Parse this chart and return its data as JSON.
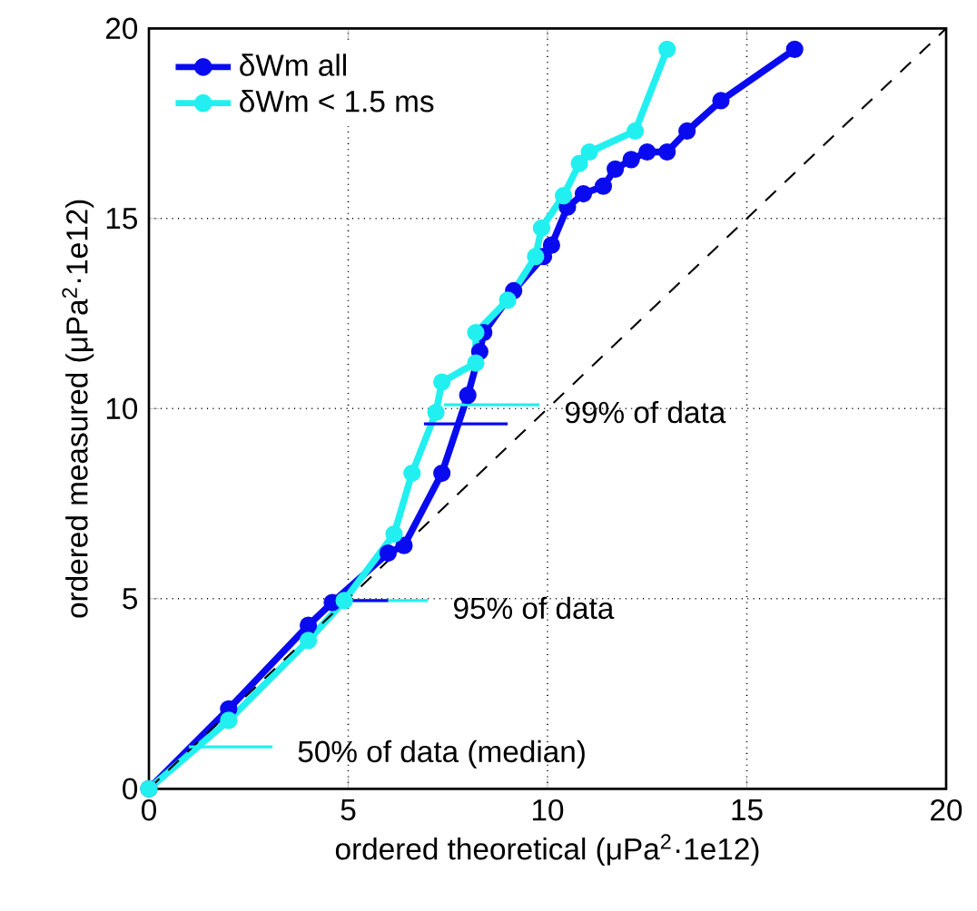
{
  "chart_data": {
    "type": "line",
    "xlabel": "ordered theoretical (μPa$^{2}$·1e12)",
    "ylabel": "ordered measured (μPa$^{2}$·1e12)",
    "xlim": [
      0,
      20
    ],
    "ylim": [
      0,
      20
    ],
    "xticks": [
      0,
      5,
      10,
      15,
      20
    ],
    "yticks": [
      0,
      5,
      10,
      15,
      20
    ],
    "grid": true,
    "legend": "top left",
    "marker": "circle",
    "series": [
      {
        "name": "δWm all",
        "color": "#0a0af0",
        "x": [
          0,
          2,
          4,
          4.6,
          6,
          6.4,
          7.35,
          8.0,
          8.3,
          8.4,
          9.15,
          9.9,
          10.1,
          10.5,
          10.9,
          11.4,
          11.7,
          12.1,
          12.5,
          13.0,
          13.5,
          14.35,
          16.2
        ],
        "values": [
          0,
          2.1,
          4.3,
          4.9,
          6.2,
          6.4,
          8.3,
          10.35,
          11.5,
          12.0,
          13.1,
          14.0,
          14.3,
          15.3,
          15.65,
          15.85,
          16.3,
          16.55,
          16.75,
          16.75,
          17.3,
          18.1,
          19.45
        ]
      },
      {
        "name": "δWm < 1.5 ms",
        "color": "#22f0f0",
        "x": [
          0,
          2,
          4,
          4.9,
          6.15,
          6.6,
          7.2,
          7.35,
          8.2,
          8.2,
          9.0,
          9.7,
          9.85,
          10.4,
          10.8,
          11.05,
          12.2,
          13.0
        ],
        "values": [
          0,
          1.8,
          3.9,
          4.95,
          6.7,
          8.3,
          9.9,
          10.7,
          11.2,
          12.0,
          12.85,
          14.0,
          14.75,
          15.6,
          16.45,
          16.75,
          17.3,
          19.45
        ]
      },
      {
        "type": "line",
        "color": "#000000",
        "line_style": "dashed",
        "marker": "none",
        "x": [
          0,
          20
        ],
        "values": [
          0,
          20
        ]
      },
      {
        "type": "line",
        "color": "#22f0f0",
        "marker": "none",
        "x": [
          1.0,
          3.1
        ],
        "values": [
          1.1,
          1.1
        ]
      },
      {
        "type": "line",
        "color": "#22f0f0",
        "marker": "none",
        "x": [
          4.8,
          7.0
        ],
        "values": [
          4.95,
          4.95
        ]
      },
      {
        "type": "line",
        "color": "#0a0af0",
        "marker": "none",
        "x": [
          4.5,
          6.0
        ],
        "values": [
          4.95,
          4.95
        ]
      },
      {
        "type": "line",
        "color": "#22f0f0",
        "marker": "none",
        "x": [
          7.4,
          9.8
        ],
        "values": [
          10.1,
          10.1
        ]
      },
      {
        "type": "line",
        "color": "#0a0af0",
        "marker": "none",
        "x": [
          6.9,
          9.0
        ],
        "values": [
          9.6,
          9.6
        ]
      }
    ],
    "annotations": [
      {
        "text": "50% of data (median)",
        "x": 3.1,
        "y": 1.1
      },
      {
        "text": "95% of data",
        "x": 7.0,
        "y": 4.95
      },
      {
        "text": "99% of data",
        "x": 9.8,
        "y": 10.1
      }
    ]
  }
}
